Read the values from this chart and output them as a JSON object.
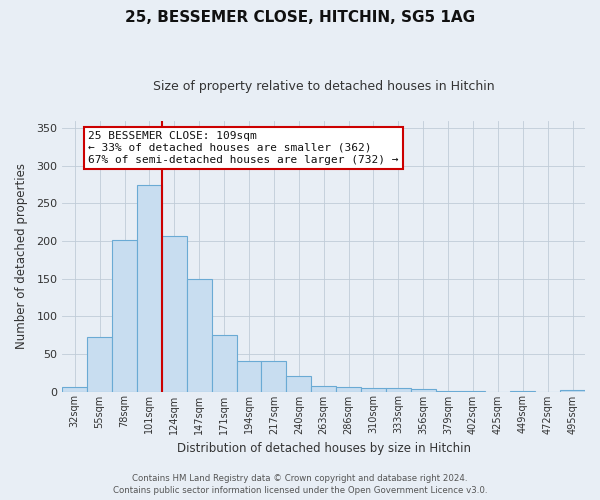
{
  "title": "25, BESSEMER CLOSE, HITCHIN, SG5 1AG",
  "subtitle": "Size of property relative to detached houses in Hitchin",
  "xlabel": "Distribution of detached houses by size in Hitchin",
  "ylabel": "Number of detached properties",
  "bar_labels": [
    "32sqm",
    "55sqm",
    "78sqm",
    "101sqm",
    "124sqm",
    "147sqm",
    "171sqm",
    "194sqm",
    "217sqm",
    "240sqm",
    "263sqm",
    "286sqm",
    "310sqm",
    "333sqm",
    "356sqm",
    "379sqm",
    "402sqm",
    "425sqm",
    "449sqm",
    "472sqm",
    "495sqm"
  ],
  "bar_values": [
    6,
    72,
    201,
    275,
    206,
    149,
    75,
    40,
    40,
    20,
    7,
    6,
    5,
    5,
    4,
    1,
    1,
    0,
    1,
    0,
    2
  ],
  "bar_color": "#c8ddf0",
  "bar_edge_color": "#6aaad4",
  "ylim": [
    0,
    360
  ],
  "yticks": [
    0,
    50,
    100,
    150,
    200,
    250,
    300,
    350
  ],
  "vline_x": 3.5,
  "vline_color": "#cc0000",
  "annotation_text": "25 BESSEMER CLOSE: 109sqm\n← 33% of detached houses are smaller (362)\n67% of semi-detached houses are larger (732) →",
  "annotation_box_color": "#ffffff",
  "annotation_box_edge_color": "#cc0000",
  "footer_line1": "Contains HM Land Registry data © Crown copyright and database right 2024.",
  "footer_line2": "Contains public sector information licensed under the Open Government Licence v3.0.",
  "bg_color": "#e8eef5",
  "plot_bg_color": "#e8eef5",
  "grid_color": "#c0ccd8",
  "title_color": "#111111",
  "subtitle_color": "#333333",
  "ylabel_color": "#333333",
  "xlabel_color": "#333333"
}
